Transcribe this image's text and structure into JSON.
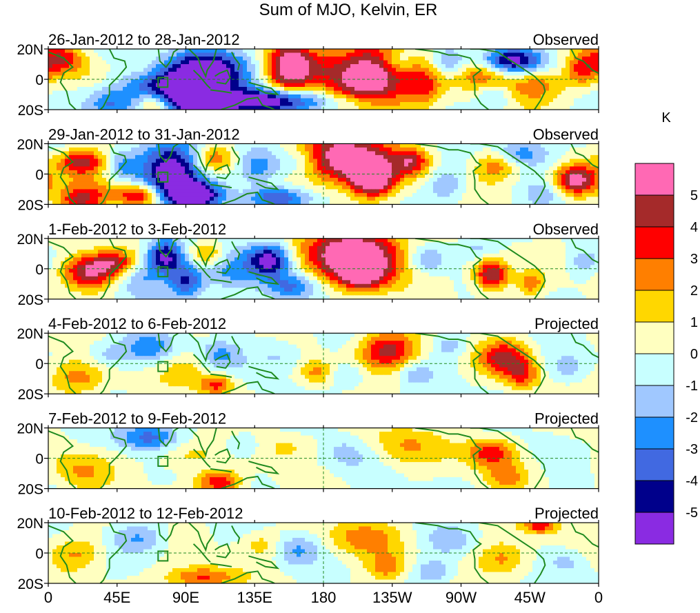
{
  "chart_data": {
    "type": "heatmap",
    "title": "Sum of MJO, Kelvin, ER",
    "colorbar": {
      "unit": "K",
      "tick_labels": [
        "5",
        "4",
        "3",
        "2",
        "1",
        "0",
        "-1",
        "-2",
        "-3",
        "-4",
        "-5"
      ],
      "levels": [
        5,
        4,
        3,
        2,
        1,
        0,
        -1,
        -2,
        -3,
        -4,
        -5
      ],
      "colors": [
        "#ff69b4",
        "#a52a2a",
        "#ff0000",
        "#ff7f00",
        "#ffd700",
        "#ffffc0",
        "#c8ffff",
        "#a0c8ff",
        "#1e90ff",
        "#4169e1",
        "#00008b",
        "#8a2be2"
      ]
    },
    "x_axis": {
      "tick_labels": [
        "0",
        "45E",
        "90E",
        "135E",
        "180",
        "135W",
        "90W",
        "45W",
        "0"
      ],
      "lon_values": [
        0,
        45,
        90,
        135,
        180,
        225,
        270,
        315,
        360
      ],
      "range": [
        0,
        360
      ]
    },
    "y_axis": {
      "tick_labels": [
        "20N",
        "0",
        "20S"
      ],
      "lat_values": [
        20,
        0,
        -20
      ],
      "range": [
        -20,
        20
      ]
    },
    "panels": [
      {
        "date_range": "26-Jan-2012 to 28-Jan-2012",
        "status": "Observed",
        "anomalies": [
          {
            "lon": 8,
            "lat": 14,
            "value": 3.5,
            "sx": 10,
            "sy": 7
          },
          {
            "lon": 30,
            "lat": 6,
            "value": 1.5,
            "sx": 14,
            "sy": 9
          },
          {
            "lon": 52,
            "lat": 0,
            "value": -1.5,
            "sx": 20,
            "sy": 16
          },
          {
            "lon": 40,
            "lat": -16,
            "value": -2.5,
            "sx": 10,
            "sy": 6
          },
          {
            "lon": 58,
            "lat": 10,
            "value": 1.5,
            "sx": 10,
            "sy": 7
          },
          {
            "lon": 88,
            "lat": -8,
            "value": -6.5,
            "sx": 20,
            "sy": 10
          },
          {
            "lon": 100,
            "lat": 10,
            "value": -4.5,
            "sx": 14,
            "sy": 8
          },
          {
            "lon": 105,
            "lat": -18,
            "value": -5.5,
            "sx": 12,
            "sy": 5
          },
          {
            "lon": 70,
            "lat": -16,
            "value": 4.0,
            "sx": 8,
            "sy": 5
          },
          {
            "lon": 122,
            "lat": 4,
            "value": -3.0,
            "sx": 12,
            "sy": 10
          },
          {
            "lon": 150,
            "lat": -14,
            "value": -6.0,
            "sx": 24,
            "sy": 6
          },
          {
            "lon": 158,
            "lat": 8,
            "value": 6.5,
            "sx": 10,
            "sy": 13
          },
          {
            "lon": 176,
            "lat": 10,
            "value": 2.0,
            "sx": 10,
            "sy": 9
          },
          {
            "lon": 210,
            "lat": 0,
            "value": 7.0,
            "sx": 20,
            "sy": 15
          },
          {
            "lon": 200,
            "lat": -16,
            "value": -2.0,
            "sx": 14,
            "sy": 5
          },
          {
            "lon": 228,
            "lat": 12,
            "value": -2.0,
            "sx": 8,
            "sy": 6
          },
          {
            "lon": 246,
            "lat": -4,
            "value": 2.5,
            "sx": 8,
            "sy": 9
          },
          {
            "lon": 262,
            "lat": 12,
            "value": -2.5,
            "sx": 8,
            "sy": 6
          },
          {
            "lon": 286,
            "lat": 6,
            "value": 3.5,
            "sx": 12,
            "sy": 10
          },
          {
            "lon": 300,
            "lat": 12,
            "value": -6.0,
            "sx": 16,
            "sy": 6
          },
          {
            "lon": 292,
            "lat": -10,
            "value": -2.0,
            "sx": 8,
            "sy": 6
          },
          {
            "lon": 318,
            "lat": -4,
            "value": 2.5,
            "sx": 14,
            "sy": 8
          },
          {
            "lon": 350,
            "lat": 6,
            "value": 3.5,
            "sx": 8,
            "sy": 8
          }
        ]
      },
      {
        "date_range": "29-Jan-2012 to 31-Jan-2012",
        "status": "Observed",
        "anomalies": [
          {
            "lon": 22,
            "lat": 8,
            "value": 4.5,
            "sx": 12,
            "sy": 6
          },
          {
            "lon": 30,
            "lat": -10,
            "value": 2.0,
            "sx": 16,
            "sy": 7
          },
          {
            "lon": 48,
            "lat": 6,
            "value": -2.0,
            "sx": 8,
            "sy": 7
          },
          {
            "lon": 22,
            "lat": -18,
            "value": 3.0,
            "sx": 10,
            "sy": 5
          },
          {
            "lon": 60,
            "lat": -14,
            "value": 4.5,
            "sx": 10,
            "sy": 5
          },
          {
            "lon": 82,
            "lat": 2,
            "value": -6.5,
            "sx": 14,
            "sy": 14
          },
          {
            "lon": 96,
            "lat": -14,
            "value": -6.0,
            "sx": 12,
            "sy": 6
          },
          {
            "lon": 108,
            "lat": 10,
            "value": 3.0,
            "sx": 10,
            "sy": 6
          },
          {
            "lon": 138,
            "lat": 4,
            "value": -2.5,
            "sx": 10,
            "sy": 8
          },
          {
            "lon": 150,
            "lat": -16,
            "value": -4.5,
            "sx": 14,
            "sy": 5
          },
          {
            "lon": 165,
            "lat": 8,
            "value": -2.0,
            "sx": 10,
            "sy": 7
          },
          {
            "lon": 195,
            "lat": 10,
            "value": 6.5,
            "sx": 22,
            "sy": 12
          },
          {
            "lon": 212,
            "lat": -4,
            "value": 5.5,
            "sx": 10,
            "sy": 8
          },
          {
            "lon": 238,
            "lat": 8,
            "value": 3.5,
            "sx": 8,
            "sy": 6
          },
          {
            "lon": 260,
            "lat": -8,
            "value": -2.0,
            "sx": 8,
            "sy": 7
          },
          {
            "lon": 292,
            "lat": 6,
            "value": 3.0,
            "sx": 10,
            "sy": 8
          },
          {
            "lon": 308,
            "lat": 14,
            "value": -3.0,
            "sx": 14,
            "sy": 6
          },
          {
            "lon": 345,
            "lat": -4,
            "value": 5.5,
            "sx": 10,
            "sy": 7
          },
          {
            "lon": 324,
            "lat": -14,
            "value": -1.5,
            "sx": 8,
            "sy": 6
          }
        ]
      },
      {
        "date_range": "1-Feb-2012 to 3-Feb-2012",
        "status": "Observed",
        "anomalies": [
          {
            "lon": 26,
            "lat": -2,
            "value": 5.5,
            "sx": 12,
            "sy": 8
          },
          {
            "lon": 44,
            "lat": 4,
            "value": 3.5,
            "sx": 10,
            "sy": 6
          },
          {
            "lon": 60,
            "lat": -6,
            "value": -2.0,
            "sx": 10,
            "sy": 9
          },
          {
            "lon": 76,
            "lat": 8,
            "value": -5.5,
            "sx": 8,
            "sy": 8
          },
          {
            "lon": 90,
            "lat": -8,
            "value": -4.0,
            "sx": 8,
            "sy": 8
          },
          {
            "lon": 104,
            "lat": 10,
            "value": 3.0,
            "sx": 8,
            "sy": 6
          },
          {
            "lon": 118,
            "lat": -2,
            "value": -2.5,
            "sx": 12,
            "sy": 10
          },
          {
            "lon": 144,
            "lat": 6,
            "value": -5.5,
            "sx": 10,
            "sy": 8
          },
          {
            "lon": 160,
            "lat": -12,
            "value": -3.0,
            "sx": 12,
            "sy": 6
          },
          {
            "lon": 200,
            "lat": 10,
            "value": 6.5,
            "sx": 24,
            "sy": 12
          },
          {
            "lon": 206,
            "lat": -4,
            "value": 4.5,
            "sx": 12,
            "sy": 8
          },
          {
            "lon": 248,
            "lat": 6,
            "value": -2.5,
            "sx": 8,
            "sy": 6
          },
          {
            "lon": 280,
            "lat": 14,
            "value": -1.5,
            "sx": 10,
            "sy": 5
          },
          {
            "lon": 290,
            "lat": -4,
            "value": 5.5,
            "sx": 8,
            "sy": 7
          },
          {
            "lon": 316,
            "lat": -10,
            "value": 2.5,
            "sx": 6,
            "sy": 6
          },
          {
            "lon": 350,
            "lat": 4,
            "value": -1.5,
            "sx": 8,
            "sy": 6
          }
        ]
      },
      {
        "date_range": "4-Feb-2012 to 6-Feb-2012",
        "status": "Projected",
        "anomalies": [
          {
            "lon": 20,
            "lat": -10,
            "value": 2.5,
            "sx": 14,
            "sy": 8
          },
          {
            "lon": 38,
            "lat": 6,
            "value": -1.5,
            "sx": 10,
            "sy": 6
          },
          {
            "lon": 66,
            "lat": 10,
            "value": -2.5,
            "sx": 12,
            "sy": 7
          },
          {
            "lon": 90,
            "lat": -4,
            "value": 1.5,
            "sx": 12,
            "sy": 8
          },
          {
            "lon": 112,
            "lat": 6,
            "value": -2.0,
            "sx": 10,
            "sy": 7
          },
          {
            "lon": 110,
            "lat": -14,
            "value": 3.5,
            "sx": 8,
            "sy": 5
          },
          {
            "lon": 150,
            "lat": 4,
            "value": -1.5,
            "sx": 12,
            "sy": 7
          },
          {
            "lon": 176,
            "lat": -6,
            "value": 2.5,
            "sx": 8,
            "sy": 6
          },
          {
            "lon": 195,
            "lat": -8,
            "value": -1.5,
            "sx": 10,
            "sy": 6
          },
          {
            "lon": 222,
            "lat": 8,
            "value": 4.5,
            "sx": 14,
            "sy": 9
          },
          {
            "lon": 240,
            "lat": -6,
            "value": -1.5,
            "sx": 8,
            "sy": 6
          },
          {
            "lon": 262,
            "lat": 12,
            "value": -1.5,
            "sx": 8,
            "sy": 5
          },
          {
            "lon": 298,
            "lat": 4,
            "value": 4.0,
            "sx": 12,
            "sy": 8
          },
          {
            "lon": 310,
            "lat": -8,
            "value": 3.0,
            "sx": 8,
            "sy": 7
          },
          {
            "lon": 340,
            "lat": -4,
            "value": -1.5,
            "sx": 10,
            "sy": 7
          }
        ]
      },
      {
        "date_range": "7-Feb-2012 to 9-Feb-2012",
        "status": "Projected",
        "anomalies": [
          {
            "lon": 20,
            "lat": -8,
            "value": 2.0,
            "sx": 14,
            "sy": 9
          },
          {
            "lon": 66,
            "lat": 14,
            "value": -3.5,
            "sx": 14,
            "sy": 6
          },
          {
            "lon": 90,
            "lat": 2,
            "value": 1.5,
            "sx": 14,
            "sy": 8
          },
          {
            "lon": 112,
            "lat": -16,
            "value": 4.0,
            "sx": 10,
            "sy": 5
          },
          {
            "lon": 128,
            "lat": 8,
            "value": -1.5,
            "sx": 10,
            "sy": 6
          },
          {
            "lon": 156,
            "lat": 8,
            "value": 1.5,
            "sx": 16,
            "sy": 7
          },
          {
            "lon": 195,
            "lat": 4,
            "value": -1.5,
            "sx": 14,
            "sy": 8
          },
          {
            "lon": 232,
            "lat": 8,
            "value": 2.0,
            "sx": 18,
            "sy": 9
          },
          {
            "lon": 290,
            "lat": 4,
            "value": 4.0,
            "sx": 12,
            "sy": 7
          },
          {
            "lon": 300,
            "lat": -12,
            "value": 2.0,
            "sx": 10,
            "sy": 6
          },
          {
            "lon": 330,
            "lat": 8,
            "value": -1.0,
            "sx": 10,
            "sy": 6
          }
        ]
      },
      {
        "date_range": "10-Feb-2012 to 12-Feb-2012",
        "status": "Projected",
        "anomalies": [
          {
            "lon": 20,
            "lat": 0,
            "value": 2.0,
            "sx": 12,
            "sy": 8
          },
          {
            "lon": 60,
            "lat": 10,
            "value": -2.0,
            "sx": 12,
            "sy": 7
          },
          {
            "lon": 100,
            "lat": -16,
            "value": 3.5,
            "sx": 16,
            "sy": 5
          },
          {
            "lon": 140,
            "lat": 6,
            "value": 1.5,
            "sx": 10,
            "sy": 6
          },
          {
            "lon": 162,
            "lat": 2,
            "value": -2.0,
            "sx": 10,
            "sy": 7
          },
          {
            "lon": 205,
            "lat": 10,
            "value": 2.5,
            "sx": 16,
            "sy": 8
          },
          {
            "lon": 222,
            "lat": -10,
            "value": 2.5,
            "sx": 10,
            "sy": 7
          },
          {
            "lon": 252,
            "lat": -12,
            "value": -2.0,
            "sx": 10,
            "sy": 6
          },
          {
            "lon": 262,
            "lat": 8,
            "value": -1.5,
            "sx": 10,
            "sy": 6
          },
          {
            "lon": 298,
            "lat": -4,
            "value": 2.5,
            "sx": 12,
            "sy": 8
          },
          {
            "lon": 322,
            "lat": 18,
            "value": 3.5,
            "sx": 8,
            "sy": 4
          },
          {
            "lon": 340,
            "lat": -6,
            "value": -1.5,
            "sx": 10,
            "sy": 6
          }
        ]
      }
    ]
  }
}
